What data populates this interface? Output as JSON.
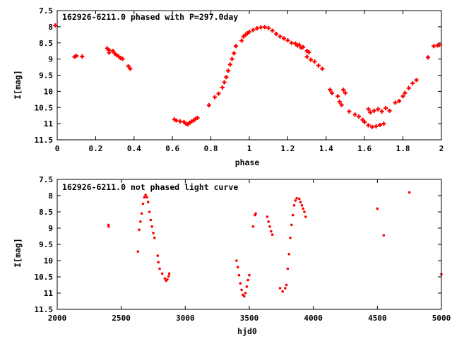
{
  "colors": {
    "points": "#ff0000",
    "axes": "#000000",
    "background": "#ffffff"
  },
  "chart_data": [
    {
      "type": "scatter",
      "title": "162926-6211.0 phased with P=297.0day",
      "xlabel": "phase",
      "ylabel": "I[mag]",
      "xlim": [
        0,
        2
      ],
      "ylim": [
        7.5,
        11.5
      ],
      "y_inverted": true,
      "grid": false,
      "xticks": [
        "0",
        "0.2",
        "0.4",
        "0.6",
        "0.8",
        "1",
        "1.2",
        "1.4",
        "1.6",
        "1.8",
        "2"
      ],
      "yticks": [
        "7.5",
        "8",
        "8.5",
        "9",
        "9.5",
        "10",
        "10.5",
        "11",
        "11.5"
      ],
      "series": [
        {
          "marker": "plus",
          "points": [
            [
              -0.01,
              7.96
            ],
            [
              0.09,
              8.93
            ],
            [
              0.1,
              8.9
            ],
            [
              0.13,
              8.92
            ],
            [
              0.26,
              8.67
            ],
            [
              0.27,
              8.72
            ],
            [
              0.27,
              8.8
            ],
            [
              0.29,
              8.75
            ],
            [
              0.3,
              8.83
            ],
            [
              0.31,
              8.88
            ],
            [
              0.32,
              8.92
            ],
            [
              0.33,
              8.97
            ],
            [
              0.34,
              8.99
            ],
            [
              0.37,
              9.22
            ],
            [
              0.38,
              9.3
            ],
            [
              0.61,
              10.87
            ],
            [
              0.62,
              10.9
            ],
            [
              0.64,
              10.93
            ],
            [
              0.66,
              10.95
            ],
            [
              0.67,
              11.0
            ],
            [
              0.68,
              11.02
            ],
            [
              0.69,
              10.97
            ],
            [
              0.7,
              10.93
            ],
            [
              0.71,
              10.9
            ],
            [
              0.72,
              10.85
            ],
            [
              0.73,
              10.82
            ],
            [
              0.79,
              10.43
            ],
            [
              0.82,
              10.18
            ],
            [
              0.84,
              10.07
            ],
            [
              0.86,
              9.88
            ],
            [
              0.87,
              9.72
            ],
            [
              0.88,
              9.56
            ],
            [
              0.89,
              9.36
            ],
            [
              0.9,
              9.17
            ],
            [
              0.91,
              9.0
            ],
            [
              0.92,
              8.82
            ],
            [
              0.93,
              8.6
            ],
            [
              0.96,
              8.43
            ],
            [
              0.97,
              8.3
            ],
            [
              0.98,
              8.25
            ],
            [
              0.99,
              8.2
            ],
            [
              1.0,
              8.16
            ],
            [
              1.02,
              8.1
            ],
            [
              1.04,
              8.05
            ],
            [
              1.06,
              8.02
            ],
            [
              1.08,
              8.01
            ],
            [
              1.1,
              8.04
            ],
            [
              1.12,
              8.12
            ],
            [
              1.14,
              8.22
            ],
            [
              1.16,
              8.3
            ],
            [
              1.18,
              8.36
            ],
            [
              1.2,
              8.42
            ],
            [
              1.22,
              8.5
            ],
            [
              1.24,
              8.52
            ],
            [
              1.25,
              8.58
            ],
            [
              1.26,
              8.56
            ],
            [
              1.27,
              8.65
            ],
            [
              1.28,
              8.63
            ],
            [
              1.3,
              8.75
            ],
            [
              1.31,
              8.79
            ],
            [
              1.3,
              8.93
            ],
            [
              1.32,
              9.02
            ],
            [
              1.34,
              9.08
            ],
            [
              1.36,
              9.2
            ],
            [
              1.38,
              9.3
            ],
            [
              1.42,
              9.95
            ],
            [
              1.43,
              10.05
            ],
            [
              1.46,
              10.15
            ],
            [
              1.47,
              10.32
            ],
            [
              1.48,
              10.42
            ],
            [
              1.49,
              9.95
            ],
            [
              1.5,
              10.05
            ],
            [
              1.52,
              10.62
            ],
            [
              1.55,
              10.72
            ],
            [
              1.57,
              10.78
            ],
            [
              1.59,
              10.88
            ],
            [
              1.6,
              10.95
            ],
            [
              1.62,
              11.05
            ],
            [
              1.64,
              11.1
            ],
            [
              1.66,
              11.08
            ],
            [
              1.68,
              11.04
            ],
            [
              1.7,
              11.0
            ],
            [
              1.62,
              10.55
            ],
            [
              1.63,
              10.65
            ],
            [
              1.65,
              10.6
            ],
            [
              1.67,
              10.55
            ],
            [
              1.69,
              10.62
            ],
            [
              1.71,
              10.52
            ],
            [
              1.73,
              10.6
            ],
            [
              1.76,
              10.35
            ],
            [
              1.78,
              10.3
            ],
            [
              1.8,
              10.15
            ],
            [
              1.81,
              10.05
            ],
            [
              1.83,
              9.9
            ],
            [
              1.85,
              9.75
            ],
            [
              1.87,
              9.65
            ],
            [
              1.93,
              8.95
            ],
            [
              1.96,
              8.6
            ],
            [
              1.98,
              8.58
            ],
            [
              1.99,
              8.56
            ]
          ]
        }
      ]
    },
    {
      "type": "scatter",
      "title": "162926-6211.0 not phased light curve",
      "xlabel": "hjd0",
      "ylabel": "I[mag]",
      "xlim": [
        2000,
        5000
      ],
      "ylim": [
        7.5,
        11.5
      ],
      "y_inverted": true,
      "grid": false,
      "xticks": [
        "2000",
        "2500",
        "3000",
        "3500",
        "4000",
        "4500",
        "5000"
      ],
      "yticks": [
        "7.5",
        "8",
        "8.5",
        "9",
        "9.5",
        "10",
        "10.5",
        "11",
        "11.5"
      ],
      "series": [
        {
          "marker": "dot",
          "points": [
            [
              2400,
              8.9
            ],
            [
              2402,
              8.95
            ],
            [
              2630,
              9.72
            ],
            [
              2640,
              9.05
            ],
            [
              2650,
              8.8
            ],
            [
              2660,
              8.55
            ],
            [
              2670,
              8.25
            ],
            [
              2680,
              8.05
            ],
            [
              2690,
              7.98
            ],
            [
              2700,
              8.05
            ],
            [
              2710,
              8.2
            ],
            [
              2720,
              8.5
            ],
            [
              2730,
              8.75
            ],
            [
              2740,
              8.95
            ],
            [
              2750,
              9.15
            ],
            [
              2760,
              9.3
            ],
            [
              2785,
              9.85
            ],
            [
              2790,
              10.05
            ],
            [
              2800,
              10.25
            ],
            [
              2820,
              10.4
            ],
            [
              2840,
              10.55
            ],
            [
              2850,
              10.62
            ],
            [
              2860,
              10.58
            ],
            [
              2870,
              10.48
            ],
            [
              2875,
              10.4
            ],
            [
              3400,
              10.0
            ],
            [
              3410,
              10.2
            ],
            [
              3420,
              10.45
            ],
            [
              3430,
              10.7
            ],
            [
              3440,
              10.9
            ],
            [
              3450,
              11.05
            ],
            [
              3460,
              11.1
            ],
            [
              3470,
              11.0
            ],
            [
              3480,
              10.8
            ],
            [
              3490,
              10.6
            ],
            [
              3500,
              10.45
            ],
            [
              3530,
              8.95
            ],
            [
              3545,
              8.6
            ],
            [
              3550,
              8.55
            ],
            [
              3640,
              8.65
            ],
            [
              3650,
              8.8
            ],
            [
              3660,
              8.95
            ],
            [
              3670,
              9.1
            ],
            [
              3680,
              9.2
            ],
            [
              3740,
              10.85
            ],
            [
              3760,
              10.95
            ],
            [
              3780,
              10.85
            ],
            [
              3790,
              10.75
            ],
            [
              3800,
              10.25
            ],
            [
              3810,
              9.8
            ],
            [
              3820,
              9.3
            ],
            [
              3830,
              8.9
            ],
            [
              3840,
              8.6
            ],
            [
              3850,
              8.3
            ],
            [
              3860,
              8.15
            ],
            [
              3870,
              8.08
            ],
            [
              3890,
              8.1
            ],
            [
              3900,
              8.2
            ],
            [
              3910,
              8.3
            ],
            [
              3920,
              8.4
            ],
            [
              3930,
              8.5
            ],
            [
              3940,
              8.65
            ],
            [
              4500,
              8.4
            ],
            [
              4550,
              9.22
            ],
            [
              4750,
              7.9
            ],
            [
              5000,
              10.42
            ]
          ]
        }
      ]
    }
  ]
}
